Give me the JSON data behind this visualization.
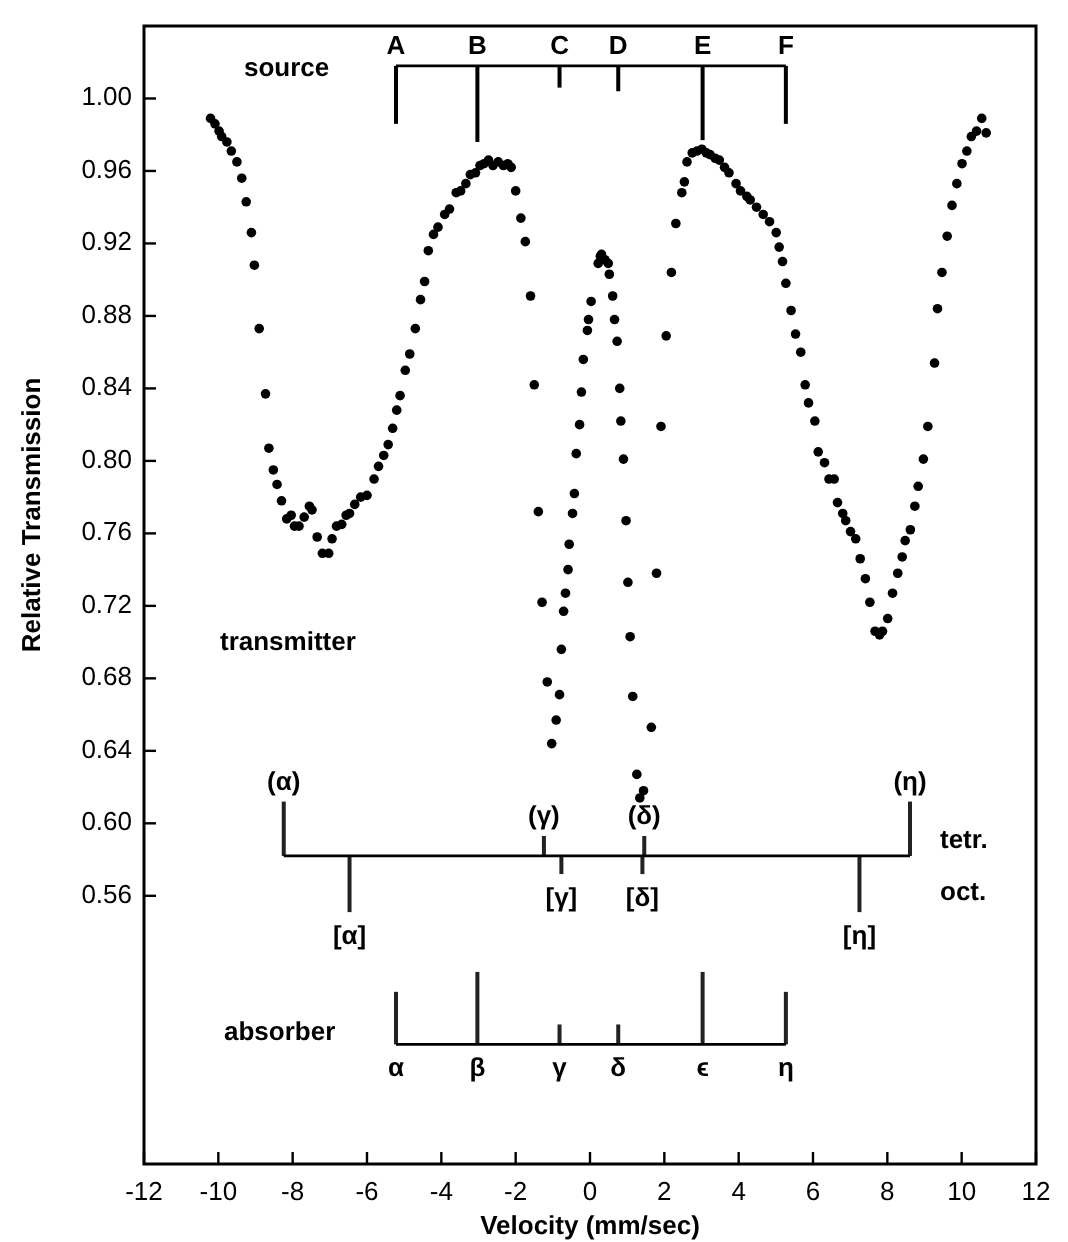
{
  "chart_data": {
    "type": "scatter",
    "xlabel": "Velocity (mm/sec)",
    "ylabel": "Relative Transmission",
    "xlim": [
      -12,
      12
    ],
    "ylim": [
      0.412,
      1.04
    ],
    "xticks": [
      -12,
      -10,
      -8,
      -6,
      -4,
      -2,
      0,
      2,
      4,
      6,
      8,
      10,
      12
    ],
    "yticks": [
      {
        "value": 1,
        "label": "1.00"
      },
      {
        "value": 0.96,
        "label": "0.96"
      },
      {
        "value": 0.92,
        "label": "0.92"
      },
      {
        "value": 0.88,
        "label": "0.88"
      },
      {
        "value": 0.84,
        "label": "0.84"
      },
      {
        "value": 0.8,
        "label": "0.80"
      },
      {
        "value": 0.76,
        "label": "0.76"
      },
      {
        "value": 0.72,
        "label": "0.72"
      },
      {
        "value": 0.68,
        "label": "0.68"
      },
      {
        "value": 0.64,
        "label": "0.64"
      },
      {
        "value": 0.6,
        "label": "0.60"
      },
      {
        "value": 0.56,
        "label": "0.56"
      }
    ],
    "grid": false,
    "marker": "circle",
    "series": [
      {
        "color": "#000000",
        "x": [
          -10.21,
          -10.09,
          -9.98,
          -9.91,
          -9.77,
          -9.65,
          -9.5,
          -9.37,
          -9.25,
          -9.11,
          -9.03,
          -8.9,
          -8.73,
          -8.64,
          -8.52,
          -8.42,
          -8.3,
          -8.16,
          -8.04,
          -7.95,
          -7.83,
          -7.69,
          -7.55,
          -7.48,
          -7.34,
          -7.2,
          -7.03,
          -6.94,
          -6.82,
          -6.68,
          -6.56,
          -6.47,
          -6.33,
          -6.17,
          -6.0,
          -5.81,
          -5.69,
          -5.55,
          -5.43,
          -5.31,
          -5.2,
          -5.11,
          -4.97,
          -4.85,
          -4.7,
          -4.56,
          -4.45,
          -4.35,
          -4.21,
          -4.09,
          -3.91,
          -3.78,
          -3.6,
          -3.48,
          -3.34,
          -3.22,
          -3.08,
          -2.96,
          -2.85,
          -2.73,
          -2.61,
          -2.47,
          -2.33,
          -2.21,
          -2.12,
          -2.0,
          -1.86,
          -1.74,
          -1.6,
          -1.5,
          -1.39,
          -1.29,
          -1.15,
          -1.03,
          -0.91,
          -0.82,
          -0.77,
          -0.71,
          -0.66,
          -0.59,
          -0.56,
          -0.47,
          -0.42,
          -0.37,
          -0.28,
          -0.23,
          -0.18,
          -0.07,
          -0.04,
          0.03,
          0.22,
          0.28,
          0.31,
          0.4,
          0.49,
          0.52,
          0.61,
          0.66,
          0.73,
          0.8,
          0.83,
          0.9,
          0.97,
          1.02,
          1.08,
          1.15,
          1.26,
          1.34,
          1.44,
          1.65,
          1.79,
          1.91,
          2.05,
          2.19,
          2.31,
          2.47,
          2.54,
          2.61,
          2.75,
          2.88,
          3.01,
          3.13,
          3.23,
          3.37,
          3.48,
          3.62,
          3.74,
          3.93,
          4.05,
          4.22,
          4.31,
          4.48,
          4.66,
          4.83,
          5.01,
          5.09,
          5.18,
          5.27,
          5.41,
          5.53,
          5.67,
          5.79,
          5.88,
          6.05,
          6.14,
          6.31,
          6.43,
          6.57,
          6.66,
          6.8,
          6.88,
          7.01,
          7.15,
          7.27,
          7.41,
          7.53,
          7.67,
          7.79,
          7.87,
          8.01,
          8.14,
          8.28,
          8.4,
          8.48,
          8.62,
          8.74,
          8.83,
          8.97,
          9.09,
          9.27,
          9.35,
          9.47,
          9.61,
          9.74,
          9.87,
          10.01,
          10.14,
          10.26,
          10.4,
          10.54,
          10.66
        ],
        "values": [
          0.989,
          0.986,
          0.982,
          0.979,
          0.976,
          0.971,
          0.965,
          0.956,
          0.943,
          0.926,
          0.908,
          0.873,
          0.837,
          0.807,
          0.795,
          0.787,
          0.778,
          0.768,
          0.77,
          0.764,
          0.764,
          0.769,
          0.775,
          0.773,
          0.758,
          0.749,
          0.749,
          0.757,
          0.764,
          0.765,
          0.77,
          0.771,
          0.776,
          0.78,
          0.781,
          0.79,
          0.797,
          0.803,
          0.809,
          0.818,
          0.828,
          0.836,
          0.85,
          0.859,
          0.873,
          0.889,
          0.899,
          0.916,
          0.925,
          0.929,
          0.936,
          0.939,
          0.948,
          0.949,
          0.953,
          0.958,
          0.959,
          0.963,
          0.964,
          0.966,
          0.963,
          0.965,
          0.963,
          0.964,
          0.962,
          0.949,
          0.934,
          0.921,
          0.891,
          0.842,
          0.772,
          0.722,
          0.678,
          0.644,
          0.657,
          0.671,
          0.696,
          0.717,
          0.727,
          0.74,
          0.754,
          0.771,
          0.782,
          0.804,
          0.82,
          0.838,
          0.856,
          0.872,
          0.878,
          0.888,
          0.909,
          0.913,
          0.914,
          0.911,
          0.909,
          0.903,
          0.891,
          0.878,
          0.866,
          0.84,
          0.822,
          0.801,
          0.767,
          0.733,
          0.703,
          0.67,
          0.627,
          0.614,
          0.618,
          0.653,
          0.738,
          0.819,
          0.869,
          0.904,
          0.931,
          0.948,
          0.954,
          0.965,
          0.97,
          0.971,
          0.972,
          0.97,
          0.969,
          0.967,
          0.966,
          0.962,
          0.959,
          0.953,
          0.949,
          0.946,
          0.944,
          0.94,
          0.936,
          0.932,
          0.926,
          0.918,
          0.91,
          0.898,
          0.883,
          0.87,
          0.86,
          0.842,
          0.832,
          0.822,
          0.805,
          0.799,
          0.79,
          0.79,
          0.777,
          0.771,
          0.767,
          0.761,
          0.757,
          0.746,
          0.735,
          0.722,
          0.706,
          0.704,
          0.706,
          0.713,
          0.727,
          0.738,
          0.747,
          0.756,
          0.762,
          0.775,
          0.786,
          0.801,
          0.819,
          0.854,
          0.884,
          0.904,
          0.924,
          0.941,
          0.953,
          0.964,
          0.971,
          0.979,
          0.982,
          0.989,
          0.981
        ]
      },
      {
        "type": "bar",
        "color": "#000000",
        "x": [
          -5.22,
          -3.03,
          -0.82,
          0.76,
          3.03,
          5.27
        ],
        "base": [
          1.018,
          1.018,
          1.018,
          1.018,
          1.018,
          1.018
        ],
        "values": [
          -0.032,
          -0.042,
          -0.012,
          -0.014,
          -0.041,
          -0.032
        ]
      },
      {
        "type": "bar",
        "color": "#222222",
        "x": [
          -8.24,
          -6.47,
          -5.22,
          -3.03,
          -1.24,
          -0.82,
          -0.77,
          0.76,
          1.41,
          1.46,
          3.03,
          5.27,
          7.25,
          8.61
        ],
        "base": [
          0.582,
          0.582,
          0.478,
          0.478,
          0.582,
          0.478,
          0.582,
          0.478,
          0.582,
          0.582,
          0.478,
          0.478,
          0.582,
          0.582
        ],
        "values": [
          0.03,
          -0.031,
          0.029,
          0.04,
          0.011,
          0.011,
          -0.01,
          0.011,
          -0.01,
          0.011,
          0.04,
          0.029,
          -0.031,
          0.03
        ]
      },
      {
        "type": "line",
        "marker": "none",
        "color": "#000000",
        "x": [
          -5.22,
          5.27
        ],
        "values": [
          1.018,
          1.018
        ]
      },
      {
        "type": "line",
        "marker": "none",
        "color": "#000000",
        "x": [
          -8.24,
          8.61
        ],
        "values": [
          0.582,
          0.582
        ]
      },
      {
        "type": "line",
        "marker": "none",
        "color": "#000000",
        "x": [
          -5.22,
          5.27
        ],
        "values": [
          0.478,
          0.478
        ]
      }
    ],
    "annotations": [
      "source",
      "transmitter",
      "tetr.",
      "oct.",
      "absorber",
      {
        "text": "A",
        "x": -5.22,
        "y": 1.018
      },
      {
        "text": "B",
        "x": -3.03,
        "y": 1.018
      },
      {
        "text": "C",
        "x": -0.82,
        "y": 1.018
      },
      {
        "text": "D",
        "x": 0.76,
        "y": 1.018
      },
      {
        "text": "E",
        "x": 3.03,
        "y": 1.018
      },
      {
        "text": "F",
        "x": 5.27,
        "y": 1.018
      },
      {
        "text": "(α)",
        "x": -8.24,
        "y": 0.612
      },
      {
        "text": "(γ)",
        "x": -1.24,
        "y": 0.593
      },
      {
        "text": "(δ)",
        "x": 1.46,
        "y": 0.593
      },
      {
        "text": "(η)",
        "x": 8.61,
        "y": 0.612
      },
      {
        "text": "[α]",
        "x": -6.47,
        "y": 0.551
      },
      {
        "text": "[γ]",
        "x": -0.77,
        "y": 0.572
      },
      {
        "text": "[δ]",
        "x": 1.41,
        "y": 0.572
      },
      {
        "text": "[η]",
        "x": 7.25,
        "y": 0.551
      },
      {
        "text": "α",
        "x": -5.22,
        "y": 0.478
      },
      {
        "text": "β",
        "x": -3.03,
        "y": 0.478
      },
      {
        "text": "γ",
        "x": -0.82,
        "y": 0.478
      },
      {
        "text": "δ",
        "x": 0.76,
        "y": 0.478
      },
      {
        "text": "ϵ",
        "x": 3.03,
        "y": 0.478
      },
      {
        "text": "η",
        "x": 5.27,
        "y": 0.478
      }
    ]
  }
}
